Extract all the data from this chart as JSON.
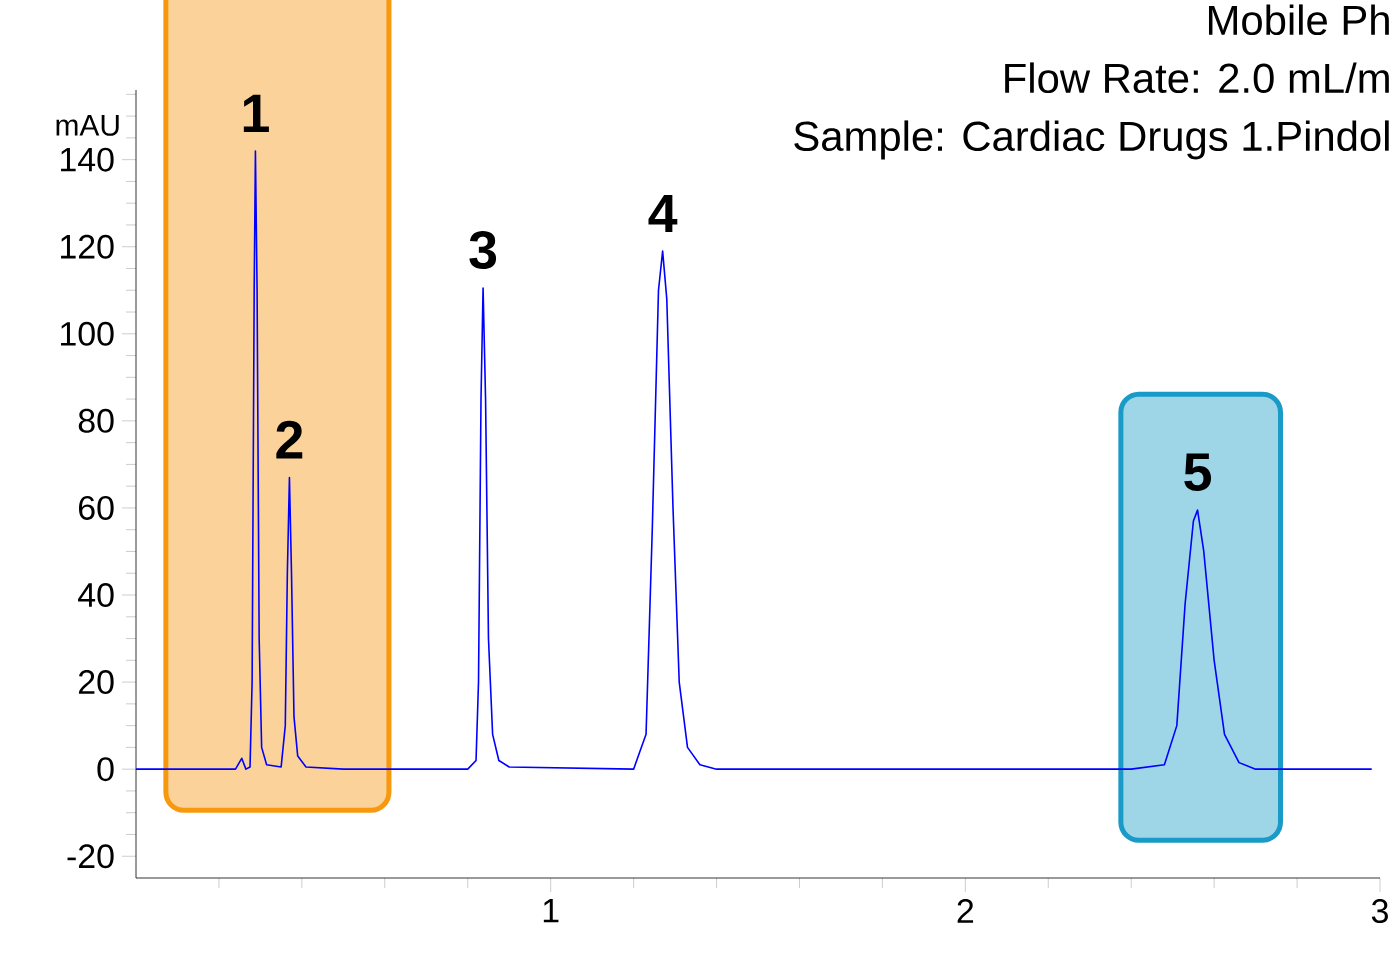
{
  "chart_data": {
    "type": "line",
    "ylabel": "mAU",
    "marker": "none",
    "annotations": [
      "Mobile Ph",
      "Flow Rate: 2.0 mL/m",
      "Sample: Cardiac Drugs 1.Pindol",
      {
        "text": "1",
        "x": 0.288,
        "y": 142
      },
      {
        "text": "2",
        "x": 0.37,
        "y": 67
      },
      {
        "text": "3",
        "x": 0.837,
        "y": 110.5
      },
      {
        "text": "4",
        "x": 1.27,
        "y": 119
      },
      {
        "text": "5",
        "x": 2.56,
        "y": 59.5
      }
    ],
    "x": [
      0.0,
      0.24,
      0.255,
      0.265,
      0.275,
      0.28,
      0.285,
      0.288,
      0.292,
      0.297,
      0.303,
      0.315,
      0.35,
      0.36,
      0.365,
      0.37,
      0.375,
      0.381,
      0.39,
      0.41,
      0.5,
      0.8,
      0.82,
      0.826,
      0.832,
      0.837,
      0.843,
      0.85,
      0.86,
      0.875,
      0.9,
      1.2,
      1.23,
      1.245,
      1.26,
      1.27,
      1.28,
      1.295,
      1.31,
      1.33,
      1.36,
      1.4,
      2.4,
      2.48,
      2.51,
      2.53,
      2.55,
      2.56,
      2.575,
      2.6,
      2.625,
      2.66,
      2.7,
      2.98
    ],
    "series": [
      {
        "color": "#0000ff",
        "values": [
          0,
          0,
          2.5,
          0,
          0.5,
          20,
          110,
          142,
          110,
          30,
          5,
          1,
          0.5,
          10,
          45,
          67,
          45,
          12,
          3,
          0.5,
          0,
          0,
          2,
          20,
          85,
          110.5,
          85,
          30,
          8,
          2,
          0.5,
          0,
          8,
          55,
          110,
          119,
          108,
          60,
          20,
          5,
          1,
          0,
          0,
          1,
          10,
          38,
          57,
          59.5,
          50,
          25,
          8,
          1.5,
          0,
          0
        ]
      }
    ],
    "bands": [
      {
        "axis": "x",
        "from": 0.072,
        "to": 0.61,
        "color": "#f7980f"
      },
      {
        "axis": "x",
        "from": 2.375,
        "to": 2.76,
        "color": "#1a9bc7"
      }
    ],
    "xlim": [
      0,
      3
    ],
    "ylim": [
      -25,
      156
    ],
    "xticks": [
      {
        "value": 0.2,
        "label": null
      },
      {
        "value": 0.4,
        "label": null
      },
      {
        "value": 0.6,
        "label": null
      },
      {
        "value": 0.8,
        "label": null
      },
      1,
      {
        "value": 1.2,
        "label": null
      },
      {
        "value": 1.4,
        "label": null
      },
      {
        "value": 1.6,
        "label": null
      },
      {
        "value": 1.8,
        "label": null
      },
      2,
      {
        "value": 2.2,
        "label": null
      },
      {
        "value": 2.4,
        "label": null
      },
      {
        "value": 2.6,
        "label": null
      },
      {
        "value": 2.8,
        "label": null
      },
      3
    ],
    "yticks": [
      -20,
      {
        "value": -15,
        "label": null
      },
      {
        "value": -10,
        "label": null
      },
      {
        "value": -5,
        "label": null
      },
      0,
      {
        "value": 5,
        "label": null
      },
      {
        "value": 10,
        "label": null
      },
      {
        "value": 15,
        "label": null
      },
      20,
      {
        "value": 25,
        "label": null
      },
      {
        "value": 30,
        "label": null
      },
      {
        "value": 35,
        "label": null
      },
      40,
      {
        "value": 45,
        "label": null
      },
      {
        "value": 50,
        "label": null
      },
      {
        "value": 55,
        "label": null
      },
      60,
      {
        "value": 65,
        "label": null
      },
      {
        "value": 70,
        "label": null
      },
      {
        "value": 75,
        "label": null
      },
      80,
      {
        "value": 85,
        "label": null
      },
      {
        "value": 90,
        "label": null
      },
      {
        "value": 95,
        "label": null
      },
      100,
      {
        "value": 105,
        "label": null
      },
      {
        "value": 110,
        "label": null
      },
      {
        "value": 115,
        "label": null
      },
      120,
      {
        "value": 125,
        "label": null
      },
      {
        "value": 130,
        "label": null
      },
      {
        "value": 135,
        "label": null
      },
      140,
      {
        "value": 145,
        "label": null
      },
      {
        "value": 150,
        "label": null
      },
      {
        "value": 155,
        "label": null
      }
    ]
  }
}
